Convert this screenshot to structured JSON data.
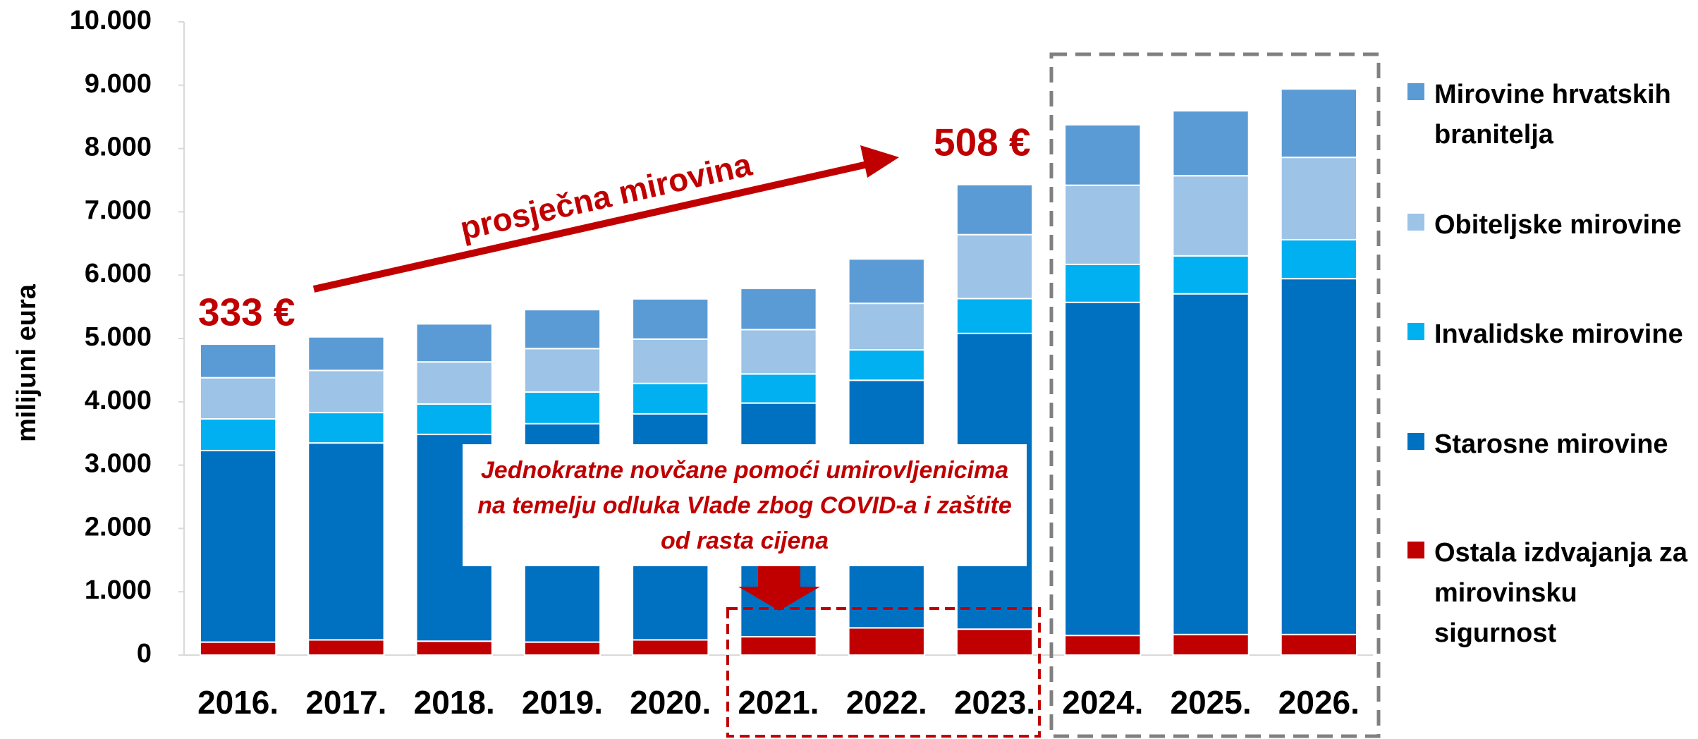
{
  "chart_data": {
    "type": "stacked_bar",
    "y_label": "milijuni eura",
    "categories": [
      "2016.",
      "2017.",
      "2018.",
      "2019.",
      "2020.",
      "2021.",
      "2022.",
      "2023.",
      "2024.",
      "2025.",
      "2026."
    ],
    "series": [
      {
        "name": "Ostala izdvajanja za mirovinsku sigurnost",
        "color": "#c00000",
        "values": [
          205,
          240,
          220,
          205,
          240,
          290,
          430,
          410,
          310,
          325,
          325
        ]
      },
      {
        "name": "Starosne mirovine",
        "color": "#0070c0",
        "values": [
          3025,
          3110,
          3265,
          3450,
          3570,
          3690,
          3910,
          4670,
          5260,
          5380,
          5620
        ]
      },
      {
        "name": "Invalidske mirovine",
        "color": "#00b0f0",
        "values": [
          500,
          480,
          480,
          500,
          480,
          460,
          480,
          550,
          600,
          600,
          615
        ]
      },
      {
        "name": "Obiteljske mirovine",
        "color": "#9dc3e6",
        "values": [
          650,
          665,
          665,
          685,
          700,
          700,
          735,
          1010,
          1250,
          1265,
          1300
        ]
      },
      {
        "name": "Mirovine hrvatskih branitelja",
        "color": "#5b9bd5",
        "values": [
          530,
          530,
          600,
          615,
          635,
          650,
          700,
          790,
          955,
          1025,
          1080
        ]
      }
    ],
    "ylim": [
      0,
      10000
    ],
    "yticks": [
      0,
      {
        "value": 1000,
        "label": "1.000"
      },
      {
        "value": 2000,
        "label": "2.000"
      },
      {
        "value": 3000,
        "label": "3.000"
      },
      {
        "value": 4000,
        "label": "4.000"
      },
      {
        "value": 5000,
        "label": "5.000"
      },
      {
        "value": 6000,
        "label": "6.000"
      },
      {
        "value": 7000,
        "label": "7.000"
      },
      {
        "value": 8000,
        "label": "8.000"
      },
      {
        "value": 9000,
        "label": "9.000"
      },
      {
        "value": 10000,
        "label": "10.000"
      }
    ],
    "grid": false,
    "legend": "right",
    "annotations": {
      "start_value": "333 €",
      "end_value": "508 €",
      "arrow_label": "prosječna mirovina",
      "box_note": "Jednokratne novčane pomoći umirovljenicima na temelju odluka Vlade zbog COVID-a i zaštite od rasta cijena"
    }
  }
}
